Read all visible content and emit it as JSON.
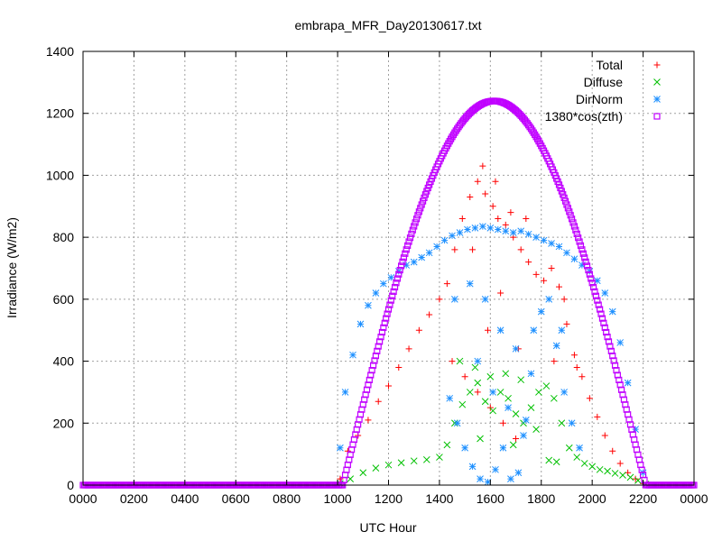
{
  "chart_data": {
    "type": "scatter",
    "title": "embrapa_MFR_Day20130617.txt",
    "xlabel": "UTC Hour",
    "ylabel": "Irradiance (W/m2)",
    "xlim": [
      0,
      24
    ],
    "ylim": [
      0,
      1400
    ],
    "x_ticks": [
      0,
      2,
      4,
      6,
      8,
      10,
      12,
      14,
      16,
      18,
      20,
      22,
      24
    ],
    "x_tick_labels": [
      "0000",
      "0200",
      "0400",
      "0600",
      "0800",
      "1000",
      "1200",
      "1400",
      "1600",
      "1800",
      "2000",
      "2200",
      "0000"
    ],
    "y_ticks": [
      0,
      200,
      400,
      600,
      800,
      1000,
      1200,
      1400
    ],
    "y_tick_labels": [
      "0",
      "200",
      "400",
      "600",
      "800",
      "1000",
      "1200",
      "1400"
    ],
    "grid": true,
    "legend_position": "top-right",
    "series": [
      {
        "name": "Total",
        "marker": "plus",
        "color": "#ff0000",
        "points": [
          [
            10.1,
            20
          ],
          [
            10.4,
            110
          ],
          [
            10.8,
            160
          ],
          [
            11.2,
            210
          ],
          [
            11.6,
            270
          ],
          [
            12.0,
            320
          ],
          [
            12.4,
            380
          ],
          [
            12.8,
            440
          ],
          [
            13.2,
            500
          ],
          [
            13.6,
            550
          ],
          [
            14.0,
            600
          ],
          [
            14.3,
            650
          ],
          [
            14.6,
            760
          ],
          [
            14.9,
            860
          ],
          [
            15.2,
            930
          ],
          [
            15.5,
            980
          ],
          [
            15.8,
            940
          ],
          [
            16.1,
            900
          ],
          [
            16.3,
            860
          ],
          [
            16.6,
            840
          ],
          [
            16.9,
            800
          ],
          [
            17.2,
            760
          ],
          [
            17.5,
            720
          ],
          [
            17.8,
            680
          ],
          [
            18.1,
            660
          ],
          [
            18.4,
            700
          ],
          [
            18.7,
            640
          ],
          [
            19.0,
            520
          ],
          [
            19.3,
            420
          ],
          [
            19.6,
            350
          ],
          [
            19.9,
            280
          ],
          [
            20.2,
            220
          ],
          [
            20.5,
            160
          ],
          [
            20.8,
            110
          ],
          [
            21.1,
            70
          ],
          [
            21.4,
            40
          ],
          [
            21.7,
            20
          ],
          [
            22.0,
            5
          ],
          [
            14.5,
            400
          ],
          [
            15.0,
            350
          ],
          [
            15.5,
            300
          ],
          [
            16.0,
            250
          ],
          [
            16.5,
            200
          ],
          [
            17.0,
            150
          ],
          [
            15.3,
            760
          ],
          [
            15.7,
            1030
          ],
          [
            16.2,
            980
          ],
          [
            16.8,
            880
          ],
          [
            17.4,
            860
          ],
          [
            18.9,
            600
          ],
          [
            15.9,
            500
          ],
          [
            16.4,
            620
          ],
          [
            17.1,
            440
          ],
          [
            18.5,
            400
          ],
          [
            19.4,
            380
          ]
        ]
      },
      {
        "name": "Diffuse",
        "marker": "cross",
        "color": "#00c000",
        "points": [
          [
            10.1,
            5
          ],
          [
            10.5,
            20
          ],
          [
            11.0,
            40
          ],
          [
            11.5,
            55
          ],
          [
            12.0,
            65
          ],
          [
            12.5,
            72
          ],
          [
            13.0,
            78
          ],
          [
            13.5,
            82
          ],
          [
            14.0,
            90
          ],
          [
            14.3,
            130
          ],
          [
            14.6,
            200
          ],
          [
            14.9,
            260
          ],
          [
            15.2,
            300
          ],
          [
            15.5,
            330
          ],
          [
            15.8,
            270
          ],
          [
            16.1,
            240
          ],
          [
            16.4,
            300
          ],
          [
            16.7,
            280
          ],
          [
            17.0,
            230
          ],
          [
            17.3,
            200
          ],
          [
            17.6,
            250
          ],
          [
            17.9,
            300
          ],
          [
            18.2,
            320
          ],
          [
            18.5,
            280
          ],
          [
            18.8,
            200
          ],
          [
            19.1,
            120
          ],
          [
            19.4,
            90
          ],
          [
            19.7,
            70
          ],
          [
            20.0,
            60
          ],
          [
            20.3,
            50
          ],
          [
            20.6,
            45
          ],
          [
            20.9,
            38
          ],
          [
            21.2,
            32
          ],
          [
            21.5,
            25
          ],
          [
            21.8,
            15
          ],
          [
            22.1,
            3
          ],
          [
            14.8,
            400
          ],
          [
            15.4,
            380
          ],
          [
            16.0,
            350
          ],
          [
            16.6,
            360
          ],
          [
            17.2,
            340
          ],
          [
            17.8,
            180
          ],
          [
            18.3,
            80
          ],
          [
            18.6,
            75
          ],
          [
            15.6,
            150
          ],
          [
            16.9,
            130
          ]
        ]
      },
      {
        "name": "DirNorm",
        "marker": "star",
        "color": "#1e90ff",
        "points": [
          [
            10.1,
            120
          ],
          [
            10.3,
            300
          ],
          [
            10.6,
            420
          ],
          [
            10.9,
            520
          ],
          [
            11.2,
            580
          ],
          [
            11.5,
            620
          ],
          [
            11.8,
            650
          ],
          [
            12.1,
            670
          ],
          [
            12.4,
            690
          ],
          [
            12.7,
            710
          ],
          [
            13.0,
            720
          ],
          [
            13.3,
            735
          ],
          [
            13.6,
            750
          ],
          [
            13.9,
            770
          ],
          [
            14.2,
            790
          ],
          [
            14.5,
            805
          ],
          [
            14.8,
            815
          ],
          [
            15.1,
            825
          ],
          [
            15.4,
            830
          ],
          [
            15.7,
            835
          ],
          [
            16.0,
            830
          ],
          [
            16.3,
            825
          ],
          [
            16.6,
            820
          ],
          [
            16.9,
            815
          ],
          [
            17.2,
            820
          ],
          [
            17.5,
            810
          ],
          [
            17.8,
            800
          ],
          [
            18.1,
            790
          ],
          [
            18.4,
            780
          ],
          [
            18.7,
            770
          ],
          [
            19.0,
            750
          ],
          [
            19.3,
            730
          ],
          [
            19.6,
            710
          ],
          [
            19.9,
            690
          ],
          [
            20.2,
            660
          ],
          [
            20.5,
            620
          ],
          [
            20.8,
            560
          ],
          [
            21.1,
            460
          ],
          [
            21.4,
            330
          ],
          [
            21.7,
            180
          ],
          [
            22.0,
            40
          ],
          [
            14.4,
            280
          ],
          [
            14.7,
            200
          ],
          [
            15.0,
            120
          ],
          [
            15.3,
            60
          ],
          [
            15.6,
            20
          ],
          [
            15.9,
            10
          ],
          [
            16.2,
            50
          ],
          [
            16.5,
            120
          ],
          [
            16.8,
            20
          ],
          [
            17.1,
            40
          ],
          [
            17.4,
            210
          ],
          [
            17.7,
            500
          ],
          [
            18.0,
            560
          ],
          [
            18.3,
            600
          ],
          [
            18.6,
            450
          ],
          [
            18.9,
            300
          ],
          [
            19.2,
            200
          ],
          [
            19.5,
            120
          ],
          [
            14.6,
            600
          ],
          [
            15.2,
            650
          ],
          [
            15.8,
            600
          ],
          [
            16.4,
            500
          ],
          [
            17.0,
            440
          ],
          [
            17.6,
            360
          ],
          [
            15.5,
            400
          ],
          [
            16.1,
            300
          ],
          [
            16.7,
            250
          ],
          [
            17.3,
            160
          ],
          [
            18.8,
            500
          ]
        ]
      },
      {
        "name": "1380*cos(zth)",
        "marker": "box",
        "color": "#c000ff",
        "curve": {
          "start": 10.2,
          "end": 22.1,
          "peak_x": 16.0,
          "peak_y": 1240,
          "step": 0.05
        }
      }
    ]
  }
}
